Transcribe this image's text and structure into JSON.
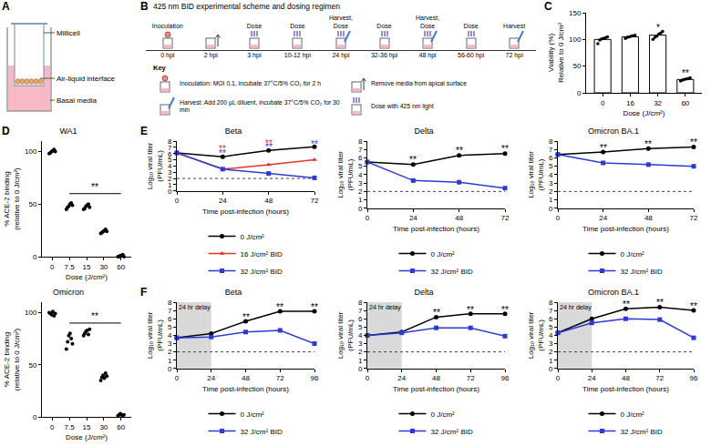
{
  "diagram_a": {
    "panel": "A",
    "labels": [
      "Millicell",
      "Air-liquid interface",
      "Basal media"
    ]
  },
  "diagram_b": {
    "panel": "B",
    "title": "425 nm BID experimental scheme and dosing regimen",
    "steps": [
      {
        "label": "Inoculation",
        "time": "0 hpi"
      },
      {
        "time": "2 hpi"
      },
      {
        "label": "Dose",
        "time": "3 hpi"
      },
      {
        "label": "Dose",
        "time": "10-12 hpi"
      },
      {
        "label": "Harvest, Dose",
        "time": "24 hpi"
      },
      {
        "label": "Dose",
        "time": "32-36 hpi"
      },
      {
        "label": "Harvest, Dose",
        "time": "48 hpi"
      },
      {
        "label": "Dose",
        "time": "56-60 hpi"
      },
      {
        "label": "Harvest",
        "time": "72 hpi"
      }
    ],
    "key_title": "Key",
    "key": [
      "Inoculation: MOI 0.1, incubate 37°C/5% CO₂ for 2 h",
      "Remove media from apical surface",
      "Harvest: Add 200 µL diluent, incubate 37°C/5% CO₂ for 30 min",
      "Dose with 425 nm light"
    ]
  },
  "chart_data": [
    {
      "panel": "C",
      "type": "bar",
      "categories": [
        "0",
        "16",
        "32",
        "60"
      ],
      "values": [
        100,
        105,
        108,
        25
      ],
      "points": [
        [
          92,
          99,
          101,
          102,
          103,
          105
        ],
        [
          102,
          104,
          105,
          106,
          107,
          108
        ],
        [
          100,
          104,
          106,
          110,
          112,
          115
        ],
        [
          22,
          24,
          25,
          26,
          27,
          28
        ]
      ],
      "color": "#ffffff",
      "x_label": "Dose (J/cm²)",
      "y_label": [
        "Viability (%)",
        "Relative to 0 J/cm²"
      ],
      "ylim": [
        0,
        150
      ],
      "yticks": [
        0,
        50,
        100,
        150
      ],
      "grid": false,
      "annotations": [
        {
          "x": "32",
          "y": 122,
          "text": "*"
        },
        {
          "x": "60",
          "y": 36,
          "text": "**"
        }
      ]
    },
    {
      "panel": "D",
      "type": "scatter",
      "title": "WA1",
      "categories": [
        "0",
        "7.5",
        "15",
        "30",
        "60"
      ],
      "points": [
        [
          98,
          99,
          100,
          101,
          102,
          100
        ],
        [
          45,
          47,
          48,
          50,
          51,
          49
        ],
        [
          45,
          46,
          48,
          49,
          50,
          47
        ],
        [
          22,
          23,
          24,
          25,
          26,
          24
        ],
        [
          0,
          0,
          1,
          1,
          2,
          0
        ]
      ],
      "color": "#000000",
      "x_label": "Dose (J/cm²)",
      "y_label": [
        "% ACE-2 binding",
        "(relative to 0 J/cm²)"
      ],
      "ylim": [
        0,
        110
      ],
      "yticks": [
        0,
        50,
        100
      ],
      "grid": false,
      "bracket": {
        "from": "7.5",
        "to": "60",
        "y": 60,
        "text": "**"
      }
    },
    {
      "type": "scatter",
      "title": "Omicron",
      "categories": [
        "0",
        "7.5",
        "15",
        "30",
        "60"
      ],
      "points": [
        [
          100,
          99,
          98,
          101,
          97,
          99
        ],
        [
          65,
          72,
          78,
          80,
          75,
          70
        ],
        [
          78,
          80,
          82,
          83,
          79,
          84
        ],
        [
          35,
          38,
          40,
          37,
          42,
          39
        ],
        [
          1,
          2,
          3,
          2,
          1,
          2
        ]
      ],
      "color": "#000000",
      "x_label": "Dose (J/cm²)",
      "y_label": [
        "% ACE-2 binding",
        "(relative to 0 J/cm²)"
      ],
      "ylim": [
        0,
        110
      ],
      "yticks": [
        0,
        50,
        100
      ],
      "grid": false,
      "bracket": {
        "from": "7.5",
        "to": "60",
        "y": 90,
        "text": "**"
      }
    },
    {
      "panel": "E",
      "type": "line",
      "title": "Beta",
      "x": [
        0,
        24,
        48,
        72
      ],
      "series": [
        {
          "name": "0 J/cm²",
          "color": "#000000",
          "marker": "circle",
          "values": [
            6.1,
            5.5,
            6.5,
            7.1
          ]
        },
        {
          "name": "16 J/cm² BID",
          "color": "#e8322a",
          "marker": "triangle-up",
          "values": [
            6.1,
            3.5,
            4.2,
            5.0
          ]
        },
        {
          "name": "32 J/cm² BID",
          "color": "#2b3bd6",
          "marker": "square",
          "values": [
            6.1,
            3.5,
            2.8,
            2.1
          ]
        }
      ],
      "x_label": "Time post-infection (hours)",
      "y_label": [
        "Log₁₀ viral titer",
        "(PFU/mL)"
      ],
      "xlim": [
        0,
        72
      ],
      "xticks": [
        0,
        24,
        48,
        72
      ],
      "ylim": [
        0,
        8
      ],
      "yticks": [
        0,
        1,
        2,
        3,
        4,
        5,
        6,
        7,
        8
      ],
      "limit_line": 2,
      "legend": "bottom",
      "grid": false,
      "annotations": [
        {
          "x": 24,
          "y": 6.7,
          "text": "**",
          "color": "#e8322a"
        },
        {
          "x": 24,
          "y": 6.0,
          "text": "**",
          "color": "#2b3bd6"
        },
        {
          "x": 48,
          "y": 7.6,
          "text": "**",
          "color": "#e8322a"
        },
        {
          "x": 48,
          "y": 7.0,
          "text": "**",
          "color": "#2b3bd6"
        },
        {
          "x": 72,
          "y": 8.1,
          "text": "**",
          "color": "#e8322a"
        },
        {
          "x": 72,
          "y": 7.5,
          "text": "**",
          "color": "#2b3bd6"
        }
      ]
    },
    {
      "type": "line",
      "title": "Delta",
      "x": [
        0,
        24,
        48,
        72
      ],
      "series": [
        {
          "name": "0 J/cm²",
          "color": "#000000",
          "marker": "circle",
          "values": [
            5.5,
            5.2,
            6.3,
            6.5
          ]
        },
        {
          "name": "32 J/cm² BID",
          "color": "#2b3bd6",
          "marker": "square",
          "values": [
            5.5,
            3.3,
            3.1,
            2.4
          ]
        }
      ],
      "x_label": "Time post-infection (hours)",
      "y_label": [
        "Log₁₀ viral titer",
        "(PFU/mL)"
      ],
      "xlim": [
        0,
        72
      ],
      "xticks": [
        0,
        24,
        48,
        72
      ],
      "ylim": [
        0,
        8
      ],
      "yticks": [
        0,
        1,
        2,
        3,
        4,
        5,
        6,
        7,
        8
      ],
      "limit_line": 2,
      "legend": "bottom",
      "grid": false,
      "annotations": [
        {
          "x": 24,
          "y": 5.8,
          "text": "**",
          "color": "#000000"
        },
        {
          "x": 48,
          "y": 6.9,
          "text": "**",
          "color": "#000000"
        },
        {
          "x": 72,
          "y": 7.1,
          "text": "**",
          "color": "#000000"
        }
      ]
    },
    {
      "type": "line",
      "title": "Omicron BA.1",
      "x": [
        0,
        24,
        48,
        72
      ],
      "series": [
        {
          "name": "0 J/cm²",
          "color": "#000000",
          "marker": "circle",
          "values": [
            6.4,
            6.7,
            7.1,
            7.3
          ]
        },
        {
          "name": "32 J/cm² BID",
          "color": "#2b3bd6",
          "marker": "square",
          "values": [
            6.4,
            5.4,
            5.2,
            5.0
          ]
        }
      ],
      "x_label": "Time post-infection (hours)",
      "y_label": [
        "Log₁₀ viral titer",
        "(PFU/mL)"
      ],
      "xlim": [
        0,
        72
      ],
      "xticks": [
        0,
        24,
        48,
        72
      ],
      "ylim": [
        0,
        8
      ],
      "yticks": [
        0,
        1,
        2,
        3,
        4,
        5,
        6,
        7,
        8
      ],
      "limit_line": 2,
      "legend": "bottom",
      "grid": false,
      "annotations": [
        {
          "x": 24,
          "y": 7.2,
          "text": "**",
          "color": "#000000"
        },
        {
          "x": 48,
          "y": 7.6,
          "text": "**",
          "color": "#000000"
        },
        {
          "x": 72,
          "y": 7.8,
          "text": "**",
          "color": "#000000"
        }
      ]
    },
    {
      "panel": "F",
      "type": "line",
      "title": "Beta",
      "x": [
        0,
        24,
        48,
        72,
        96
      ],
      "series": [
        {
          "name": "0 J/cm²",
          "color": "#000000",
          "marker": "circle",
          "values": [
            3.7,
            4.2,
            5.7,
            6.9,
            6.9
          ]
        },
        {
          "name": "32 J/cm² BID",
          "color": "#2b3bd6",
          "marker": "square",
          "values": [
            3.7,
            3.8,
            4.4,
            4.6,
            3.0
          ]
        }
      ],
      "x_label": "Time post-infection (hours)",
      "y_label": [
        "Log₁₀ viral titer",
        "(PFU/mL)"
      ],
      "xlim": [
        0,
        96
      ],
      "xticks": [
        0,
        24,
        48,
        72,
        96
      ],
      "ylim": [
        0,
        8
      ],
      "yticks": [
        0,
        1,
        2,
        3,
        4,
        5,
        6,
        7,
        8
      ],
      "limit_line": 2,
      "legend": "bottom",
      "grid": false,
      "shaded": {
        "from": 0,
        "to": 24,
        "text": "24 hr delay"
      },
      "annotations": [
        {
          "x": 48,
          "y": 6.2,
          "text": "**",
          "color": "#000000"
        },
        {
          "x": 72,
          "y": 7.4,
          "text": "**",
          "color": "#000000"
        },
        {
          "x": 96,
          "y": 7.4,
          "text": "**",
          "color": "#000000"
        }
      ]
    },
    {
      "type": "line",
      "title": "Delta",
      "x": [
        0,
        24,
        48,
        72,
        96
      ],
      "series": [
        {
          "name": "0 J/cm²",
          "color": "#000000",
          "marker": "circle",
          "values": [
            4.0,
            4.4,
            6.2,
            6.6,
            6.6
          ]
        },
        {
          "name": "32 J/cm² BID",
          "color": "#2b3bd6",
          "marker": "square",
          "values": [
            4.0,
            4.3,
            4.9,
            4.9,
            3.9
          ]
        }
      ],
      "x_label": "Time post-infection (hours)",
      "y_label": [
        "Log₁₀ viral titer",
        "(PFU/mL)"
      ],
      "xlim": [
        0,
        96
      ],
      "xticks": [
        0,
        24,
        48,
        72,
        96
      ],
      "ylim": [
        0,
        8
      ],
      "yticks": [
        0,
        1,
        2,
        3,
        4,
        5,
        6,
        7,
        8
      ],
      "limit_line": 2,
      "legend": "bottom",
      "grid": false,
      "shaded": {
        "from": 0,
        "to": 24,
        "text": "24 hr delay"
      },
      "annotations": [
        {
          "x": 48,
          "y": 6.7,
          "text": "**",
          "color": "#000000"
        },
        {
          "x": 72,
          "y": 7.1,
          "text": "**",
          "color": "#000000"
        },
        {
          "x": 96,
          "y": 7.1,
          "text": "**",
          "color": "#000000"
        }
      ]
    },
    {
      "type": "line",
      "title": "Omicron BA.1",
      "x": [
        0,
        24,
        48,
        72,
        96
      ],
      "series": [
        {
          "name": "0 J/cm²",
          "color": "#000000",
          "marker": "circle",
          "values": [
            4.3,
            6.0,
            7.2,
            7.4,
            7.0
          ]
        },
        {
          "name": "32 J/cm² BID",
          "color": "#2b3bd6",
          "marker": "square",
          "values": [
            4.3,
            5.5,
            6.0,
            5.9,
            3.7
          ]
        }
      ],
      "x_label": "Time post-infection (hours)",
      "y_label": [
        "Log₁₀ viral titer",
        "(PFU/mL)"
      ],
      "xlim": [
        0,
        96
      ],
      "xticks": [
        0,
        24,
        48,
        72,
        96
      ],
      "ylim": [
        0,
        8
      ],
      "yticks": [
        0,
        1,
        2,
        3,
        4,
        5,
        6,
        7,
        8
      ],
      "limit_line": 2,
      "legend": "bottom",
      "grid": false,
      "shaded": {
        "from": 0,
        "to": 24,
        "text": "24 hr delay"
      },
      "annotations": [
        {
          "x": 48,
          "y": 7.7,
          "text": "**",
          "color": "#000000"
        },
        {
          "x": 72,
          "y": 7.9,
          "text": "**",
          "color": "#000000"
        },
        {
          "x": 96,
          "y": 7.5,
          "text": "**",
          "color": "#000000"
        }
      ]
    }
  ]
}
